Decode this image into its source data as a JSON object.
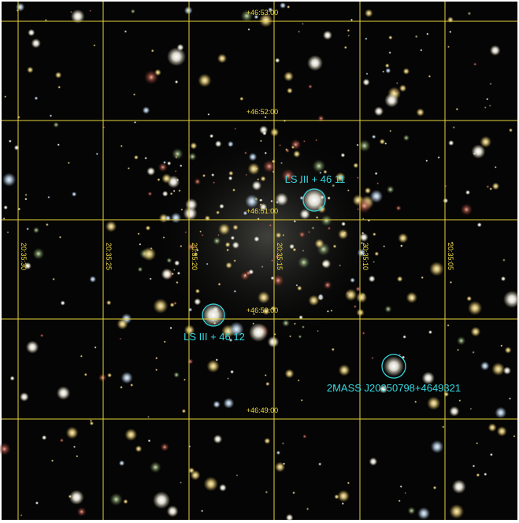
{
  "grid": {
    "declination_labels": [
      "+46:53:00",
      "+46:52:00",
      "+46:51:00",
      "+46:50:00",
      "+46:49:00"
    ],
    "right_ascension_labels": [
      "20:35:30",
      "20:35:25",
      "20:35:20",
      "20:35:15",
      "20:35:10",
      "20:35:05"
    ]
  },
  "sources": [
    {
      "label": "LS III + 46 11"
    },
    {
      "label": "LS III + 46 12"
    },
    {
      "label": "2MASS J20350798+4649321"
    }
  ]
}
